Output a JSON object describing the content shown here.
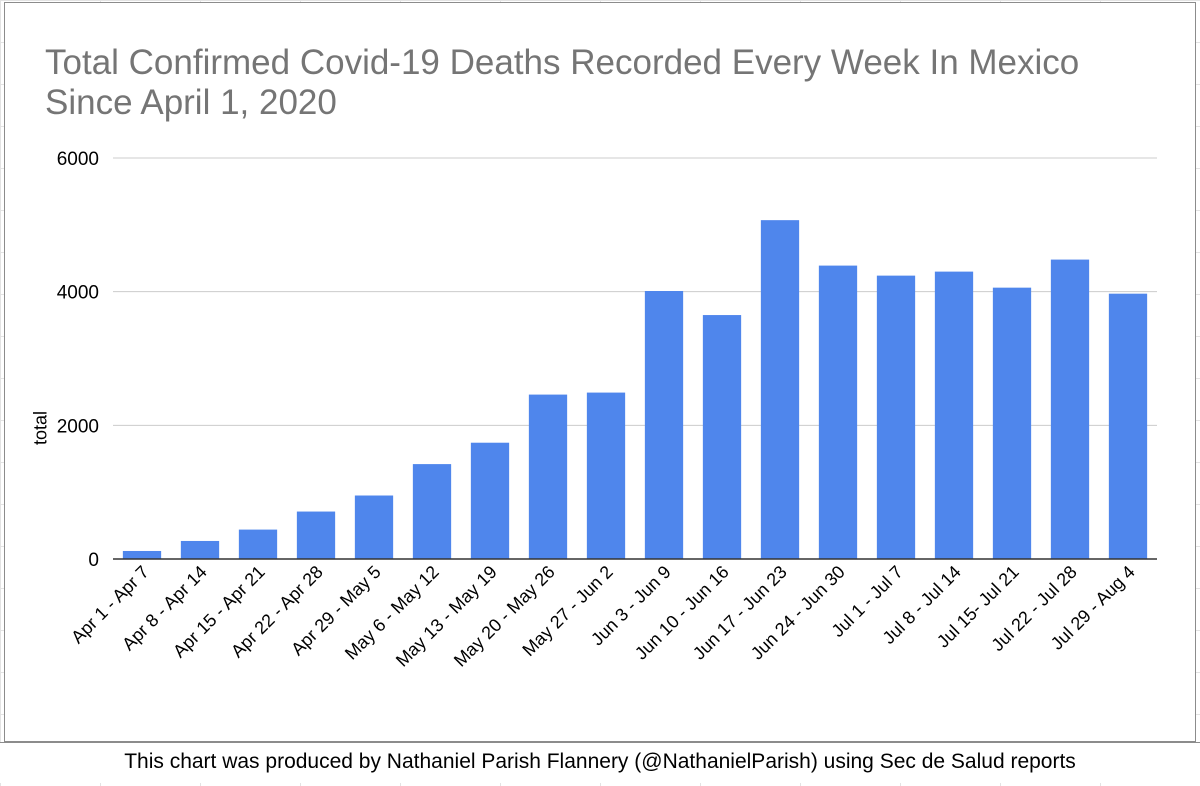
{
  "chart_data": {
    "type": "bar",
    "title": "Total Confirmed Covid-19 Deaths Recorded Every Week In Mexico Since April 1, 2020",
    "xlabel": "",
    "ylabel": "total",
    "ylim": [
      0,
      6000
    ],
    "yticks": [
      0,
      2000,
      4000,
      6000
    ],
    "grid": true,
    "categories": [
      "Apr 1 -  Apr 7",
      "Apr 8 -   Apr 14",
      "Apr 15 - Apr 21",
      "Apr 22 - Apr 28",
      "Apr 29 - May 5",
      "May 6 - May 12",
      "May 13 - May 19",
      "May 20 - May 26",
      "May 27 - Jun 2",
      "Jun 3 - Jun 9",
      "Jun 10 - Jun 16",
      "Jun 17 - Jun 23",
      "Jun 24 - Jun 30",
      "Jul 1 - Jul 7",
      "Jul 8 - Jul 14",
      "Jul 15- Jul 21",
      "Jul 22 - Jul 28",
      "Jul 29 - Aug 4"
    ],
    "values": [
      120,
      270,
      440,
      710,
      950,
      1420,
      1740,
      2460,
      2490,
      4010,
      3650,
      5070,
      4390,
      4240,
      4300,
      4060,
      4480,
      3970
    ],
    "bar_color": "#4f86ec"
  },
  "footer": {
    "caption": "This chart was produced by Nathaniel Parish Flannery (@NathanielParish) using Sec de Salud reports"
  }
}
